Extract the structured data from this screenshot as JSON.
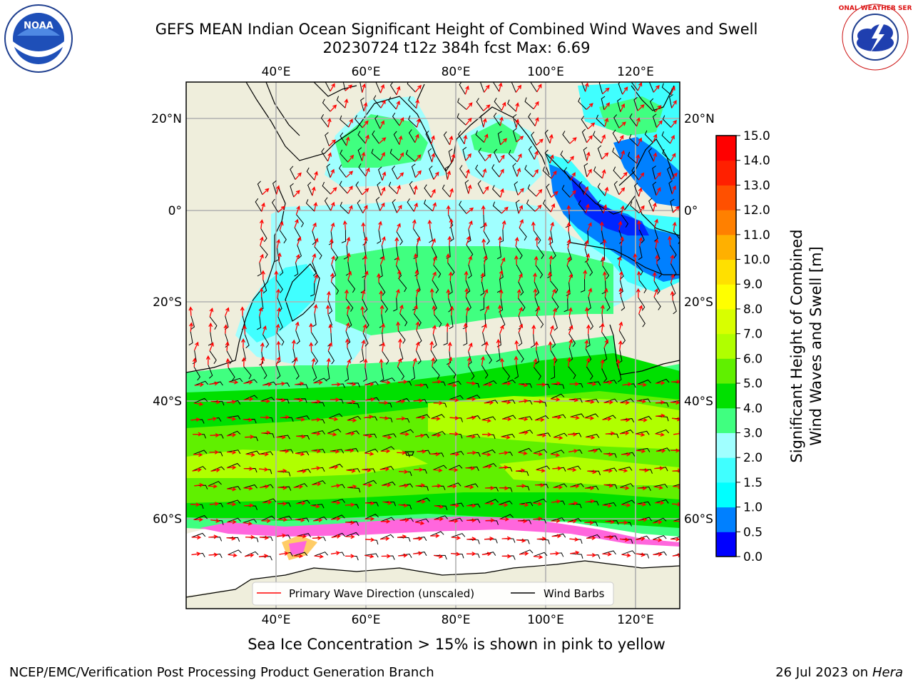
{
  "header": {
    "title_line1": "GEFS MEAN Indian Ocean Significant Height of Combined Wind Waves and Swell",
    "title_line2": "20230724 t12z 384h fcst   Max: 6.69"
  },
  "logos": {
    "noaa_text": "NOAA",
    "nws_text": "NATIONAL WEATHER SERVICE"
  },
  "axes": {
    "lon_top": [
      "40°E",
      "60°E",
      "80°E",
      "100°E",
      "120°E"
    ],
    "lon_bottom": [
      "40°E",
      "60°E",
      "80°E",
      "100°E",
      "120°E"
    ],
    "lat_left": [
      "20°N",
      "0°",
      "20°S",
      "40°S",
      "60°S"
    ],
    "lat_right": [
      "20°N",
      "0°",
      "20°S",
      "40°S",
      "60°S"
    ]
  },
  "legend": {
    "wave_direction": "Primary Wave Direction (unscaled)",
    "wind_barbs": "Wind Barbs"
  },
  "colorbar": {
    "label_line1": "Significant Height of Combined",
    "label_line2": "Wind Waves and Swell [m]",
    "ticks": [
      "0.0",
      "0.5",
      "1.0",
      "1.5",
      "2.0",
      "3.0",
      "4.0",
      "5.0",
      "6.0",
      "7.0",
      "8.0",
      "9.0",
      "10.0",
      "11.0",
      "12.0",
      "13.0",
      "14.0",
      "15.0"
    ],
    "colors": [
      "#0000ff",
      "#0080ff",
      "#00ffff",
      "#40ffff",
      "#a0ffff",
      "#40ff80",
      "#00e000",
      "#60f000",
      "#b0ff00",
      "#d8ff00",
      "#ffff00",
      "#ffe000",
      "#ffb000",
      "#ff8000",
      "#ff5000",
      "#ff2000",
      "#ff0000"
    ]
  },
  "map_colors": {
    "land": "#efeedc",
    "ice_free": "#ffffff",
    "ice_pink": "#ff66dd"
  },
  "notes": {
    "sea_ice": "Sea Ice Concentration > 15% is shown in pink to yellow"
  },
  "footer": {
    "left": "NCEP/EMC/Verification Post Processing Product Generation Branch",
    "right_prefix": "26 Jul 2023 on ",
    "right_host": "Hera"
  }
}
